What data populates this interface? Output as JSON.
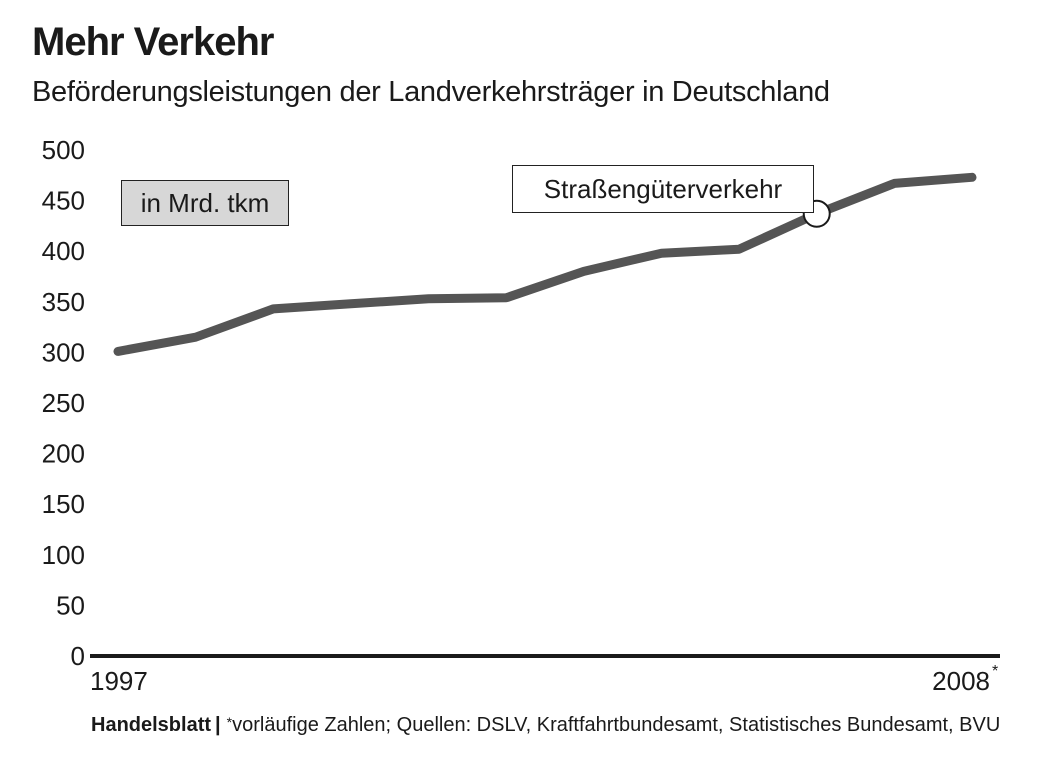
{
  "chart_data": {
    "type": "line",
    "title": "Mehr Verkehr",
    "subtitle": "Beförderungsleistungen der Landverkehrsträger in Deutschland",
    "unit_label": "in Mrd. tkm",
    "x": [
      1997,
      1998,
      1999,
      2000,
      2001,
      2002,
      2003,
      2004,
      2005,
      2006,
      2007,
      2008
    ],
    "x_tick_labels": [
      "1997",
      "2008"
    ],
    "x_tick_footnote_mark": "*",
    "y_ticks": [
      "0",
      "50",
      "100",
      "150",
      "200",
      "250",
      "300",
      "350",
      "400",
      "450",
      "500"
    ],
    "ylim": [
      0,
      500
    ],
    "series": [
      {
        "name": "Straßengüterverkehr",
        "values": [
          301,
          315,
          343,
          348,
          353,
          354,
          380,
          398,
          402,
          437,
          467,
          473
        ]
      }
    ],
    "highlight_point": {
      "x": 2006,
      "y": 437
    },
    "grid": false,
    "line_color": "#555555",
    "unit_box_color": "#d7d7d7"
  },
  "footer": {
    "brand": "Handelsblatt",
    "separator": "|",
    "footnote_mark": "*",
    "note": "vorläufige Zahlen; Quellen: DSLV, Kraftfahrtbundesamt, Statistisches Bundesamt, BVU"
  }
}
